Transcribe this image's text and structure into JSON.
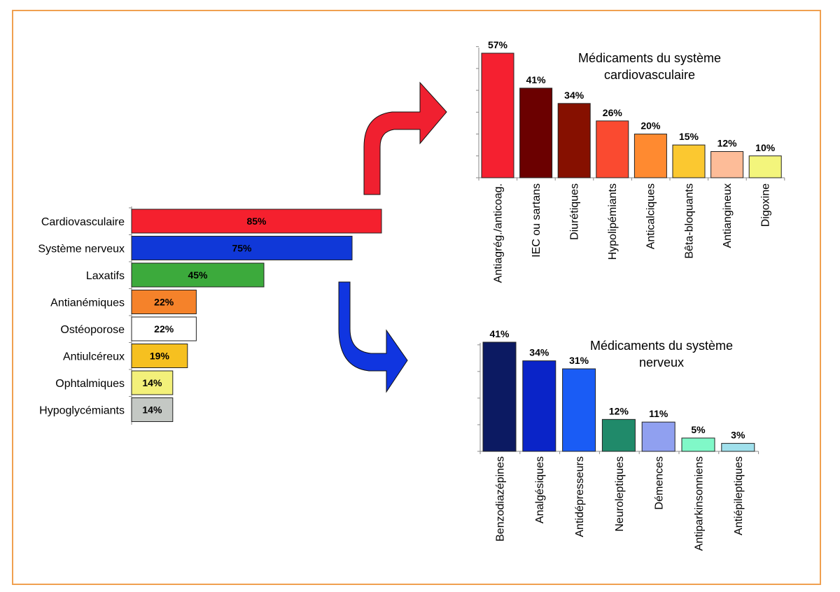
{
  "chart_data": [
    {
      "type": "bar",
      "orientation": "horizontal",
      "categories": [
        "Cardiovasculaire",
        "Système nerveux",
        "Laxatifs",
        "Antianémiques",
        "Ostéoporose",
        "Antiulcéreux",
        "Ophtalmiques",
        "Hypoglycémiants"
      ],
      "values": [
        85,
        75,
        45,
        22,
        22,
        19,
        14,
        14
      ],
      "value_labels": [
        "85%",
        "75%",
        "45%",
        "22%",
        "22%",
        "19%",
        "14%",
        "14%"
      ],
      "colors": [
        "#f5202e",
        "#1038d8",
        "#3caa3c",
        "#f5822a",
        "#ffffff",
        "#f6c020",
        "#f3f07a",
        "#c4c8c4"
      ],
      "label_colors": [
        "#2a0000",
        "#000033",
        "#000000",
        "#000000",
        "#000000",
        "#000000",
        "#000000",
        "#000000"
      ]
    },
    {
      "type": "bar",
      "title": "Médicaments du système cardiovasculaire",
      "title_lines": [
        "Médicaments du système",
        "cardiovasculaire"
      ],
      "categories": [
        "Antiagrég./anticoag.",
        "IEC ou sartans",
        "Diurétiques",
        "Hypolipémiants",
        "Anticalciques",
        "Bêta-bloquants",
        "Antiangineux",
        "Digoxine"
      ],
      "values": [
        57,
        41,
        34,
        26,
        20,
        15,
        12,
        10
      ],
      "value_labels": [
        "57%",
        "41%",
        "34%",
        "26%",
        "20%",
        "15%",
        "12%",
        "10%"
      ],
      "colors": [
        "#f52030",
        "#6b0000",
        "#861000",
        "#fa4a30",
        "#ff8a30",
        "#fbc830",
        "#fdbc98",
        "#f3f57c"
      ],
      "ylim": [
        0,
        60
      ]
    },
    {
      "type": "bar",
      "title": "Médicaments du système nerveux",
      "title_lines": [
        "Médicaments du système",
        "nerveux"
      ],
      "categories": [
        "Benzodiazépines",
        "Analgésiques",
        "Antidépresseurs",
        "Neuroleptiques",
        "Démences",
        "Antiparkinsonniens",
        "Antiépileptiques"
      ],
      "values": [
        41,
        34,
        31,
        12,
        11,
        5,
        3
      ],
      "value_labels": [
        "41%",
        "34%",
        "31%",
        "12%",
        "11%",
        "5%",
        "3%"
      ],
      "colors": [
        "#0c1a62",
        "#0a24c8",
        "#1a5cf5",
        "#208a6a",
        "#90a0f0",
        "#80f8c8",
        "#a0e0ec"
      ],
      "ylim": [
        0,
        45
      ]
    }
  ],
  "arrows": {
    "red": "#f02030",
    "blue": "#1035e0"
  }
}
